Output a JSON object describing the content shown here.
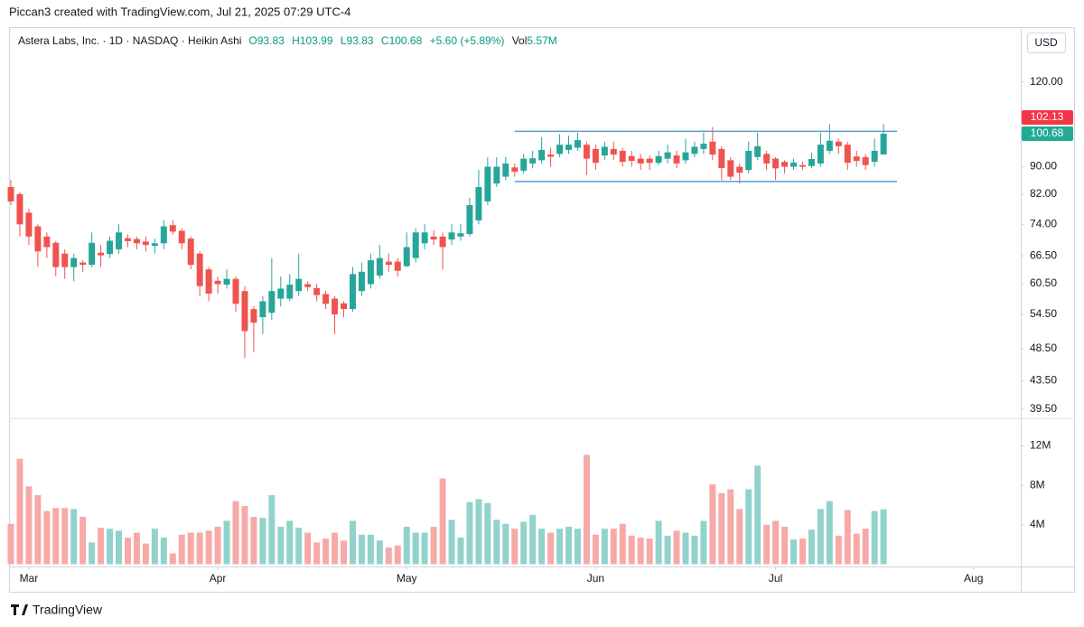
{
  "page": {
    "caption": "Piccan3 created with TradingView.com, Jul 21, 2025 07:29 UTC-4",
    "brand": "TradingView"
  },
  "chart_data": {
    "type": "candlestick",
    "header": {
      "symbol": "Astera Labs, Inc. · 1D · NASDAQ · Heikin Ashi",
      "open": "O93.83",
      "high": "H103.99",
      "low": "L93.83",
      "close": "C100.68",
      "change": "+5.60 (+5.89%)",
      "volume_label": "Vol",
      "volume": "5.57M"
    },
    "currency": "USD",
    "up_color": "#26a69a",
    "down_color": "#ef5350",
    "volume_up_color": "#92d2cc",
    "volume_down_color": "#f7a9a7",
    "open": [
      84,
      82,
      77,
      73.5,
      71,
      69.5,
      67,
      64,
      65,
      64.5,
      67.2,
      66.9,
      68,
      70.6,
      70.4,
      69.8,
      68.8,
      69.4,
      73.8,
      72.4,
      70.5,
      67,
      63.5,
      61.1,
      60.3,
      61.5,
      59,
      55.5,
      54,
      54.8,
      57.5,
      57.5,
      59,
      60.4,
      59.6,
      58.4,
      57.5,
      56.6,
      55.5,
      59,
      60.4,
      62.2,
      65.2,
      65.2,
      64.2,
      66,
      69.4,
      71,
      71,
      70.3,
      71,
      71.6,
      75,
      80,
      85,
      87,
      89.8,
      88.8,
      91,
      92,
      93.8,
      94,
      95.3,
      96,
      97,
      95.6,
      93.5,
      95.6,
      95,
      93.3,
      92.5,
      92.5,
      91.2,
      92.5,
      93.5,
      92,
      94,
      95.6,
      98,
      95.6,
      92,
      90,
      89,
      93,
      94,
      92.5,
      91.5,
      90,
      90.5,
      90.2,
      91,
      95,
      98,
      97,
      93.2,
      93,
      91.5,
      93.83
    ],
    "high": [
      86,
      82.5,
      78,
      74,
      72,
      70,
      68,
      67,
      65.5,
      72,
      69,
      71,
      74,
      71.5,
      71,
      71,
      70.5,
      75,
      75,
      73,
      71,
      67.5,
      64,
      62,
      63.5,
      62,
      60,
      56,
      58,
      66,
      62,
      62.5,
      67,
      61,
      60.5,
      59,
      58,
      57,
      64,
      65,
      67,
      69,
      67,
      66,
      72,
      73,
      74,
      72.5,
      72,
      74,
      74,
      81,
      89,
      93,
      93,
      93,
      91,
      94,
      95,
      99.5,
      96,
      100.5,
      100,
      101,
      98,
      97,
      98,
      98,
      96,
      95,
      94,
      93.5,
      95,
      97,
      95,
      99,
      98,
      101,
      103,
      96.5,
      93,
      91,
      98,
      101,
      95,
      93,
      92,
      92.5,
      91.5,
      94.5,
      101,
      104,
      99,
      98,
      95,
      94,
      99,
      103.99
    ],
    "low": [
      79,
      71,
      69,
      64,
      66,
      62,
      61.5,
      61,
      63,
      64,
      64,
      66,
      67,
      68.5,
      68,
      67.5,
      67,
      68,
      71.5,
      68,
      63.5,
      58,
      57,
      58.5,
      59.5,
      55,
      47,
      48,
      51,
      53.5,
      56,
      57,
      58,
      59,
      57,
      55.5,
      51,
      54,
      55,
      58,
      59.5,
      61.5,
      63,
      62,
      64,
      65,
      68,
      69,
      63.5,
      69,
      70,
      71,
      74,
      79,
      84,
      86,
      87,
      88,
      89.5,
      91,
      90,
      93,
      94,
      95,
      87.5,
      89,
      92,
      92,
      90,
      90,
      89,
      89,
      90.5,
      91,
      89.5,
      91,
      93,
      94,
      92,
      86,
      86,
      85,
      88,
      92,
      89,
      86,
      88,
      89,
      89,
      89.5,
      90,
      94,
      94,
      89,
      90,
      89,
      90,
      93.83
    ],
    "close": [
      80,
      74,
      71,
      67.5,
      68.5,
      64,
      64,
      66,
      64.5,
      69.5,
      66.6,
      70,
      72,
      69.9,
      69.4,
      69,
      69.4,
      73.5,
      72.2,
      69.4,
      64.5,
      60,
      58.5,
      60.4,
      61.5,
      56.5,
      51.5,
      53,
      57,
      59,
      59.5,
      60.3,
      61.5,
      59.8,
      58.2,
      56.5,
      54.5,
      55.5,
      62.5,
      63,
      65.5,
      66,
      64.5,
      63.2,
      68.5,
      72,
      72,
      70.3,
      68.5,
      72,
      71.8,
      79,
      84,
      90,
      90,
      91,
      88.5,
      92.5,
      92.6,
      95.3,
      93.1,
      97,
      97,
      98.5,
      92.5,
      91.2,
      96.3,
      93.8,
      91.5,
      91.8,
      91,
      91.2,
      93.3,
      94.5,
      91,
      94.5,
      96.3,
      97.3,
      93.8,
      89.6,
      87,
      88.2,
      95,
      96.5,
      91,
      89.5,
      90,
      91.3,
      90,
      92.4,
      97,
      98.3,
      96.5,
      91.2,
      91.8,
      90.5,
      95,
      100.68
    ],
    "volume": [
      4100000,
      10700000,
      7900000,
      7000000,
      5400000,
      5700000,
      5700000,
      5600000,
      4800000,
      2200000,
      3700000,
      3600000,
      3400000,
      2700000,
      3200000,
      2100000,
      3600000,
      2700000,
      1100000,
      3000000,
      3200000,
      3200000,
      3400000,
      3800000,
      4400000,
      6400000,
      5900000,
      4800000,
      4700000,
      7000000,
      3800000,
      4400000,
      3700000,
      3200000,
      2200000,
      2600000,
      3200000,
      2400000,
      4400000,
      3000000,
      3000000,
      2400000,
      1700000,
      1900000,
      3800000,
      3200000,
      3200000,
      3800000,
      8700000,
      4500000,
      2700000,
      6300000,
      6600000,
      6200000,
      4500000,
      4100000,
      3600000,
      4300000,
      5000000,
      3600000,
      3200000,
      3600000,
      3800000,
      3600000,
      11100000,
      3000000,
      3600000,
      3600000,
      4100000,
      2900000,
      2700000,
      2600000,
      4400000,
      2900000,
      3400000,
      3200000,
      2900000,
      4400000,
      8100000,
      7200000,
      7600000,
      5600000,
      7600000,
      10000000,
      4000000,
      4400000,
      3800000,
      2500000,
      2600000,
      3500000,
      5600000,
      6400000,
      2900000,
      5500000,
      3100000,
      3600000,
      5400000,
      5570000
    ],
    "xlim": [
      -0.2,
      112.25
    ],
    "xticks": [
      {
        "value": 2,
        "label": "Mar"
      },
      {
        "value": 23,
        "label": "Apr"
      },
      {
        "value": 44,
        "label": "May"
      },
      {
        "value": 65,
        "label": "Jun"
      },
      {
        "value": 85,
        "label": "Jul"
      },
      {
        "value": 107,
        "label": "Aug"
      }
    ],
    "ylim": [
      38.3,
      144.6
    ],
    "log": true,
    "grid": false,
    "yticks": [
      {
        "value": 120,
        "label": "120.00"
      },
      {
        "value": 90,
        "label": "90.00"
      },
      {
        "value": 82,
        "label": "82.00"
      },
      {
        "value": 74,
        "label": "74.00"
      },
      {
        "value": 66.5,
        "label": "66.50"
      },
      {
        "value": 60.5,
        "label": "60.50"
      },
      {
        "value": 54.5,
        "label": "54.50"
      },
      {
        "value": 48.5,
        "label": "48.50"
      },
      {
        "value": 43.5,
        "label": "43.50"
      },
      {
        "value": 39.5,
        "label": "39.50"
      }
    ],
    "y2lim": [
      -230000,
      14800000
    ],
    "y2ticks": [
      {
        "value": 12000000,
        "label": "12M"
      },
      {
        "value": 8000000,
        "label": "8M"
      },
      {
        "value": 4000000,
        "label": "4M"
      }
    ],
    "hlines": [
      {
        "value": 101.5,
        "start": 56,
        "end": 98.5,
        "color": "#5b9bd5"
      },
      {
        "value": 85.6,
        "start": 56,
        "end": 98.5,
        "color": "#5b9bd5"
      }
    ],
    "price_labels": [
      {
        "value": 102.13,
        "color": "#f23645"
      },
      {
        "value": 100.68,
        "color": "#22ab94"
      }
    ]
  }
}
